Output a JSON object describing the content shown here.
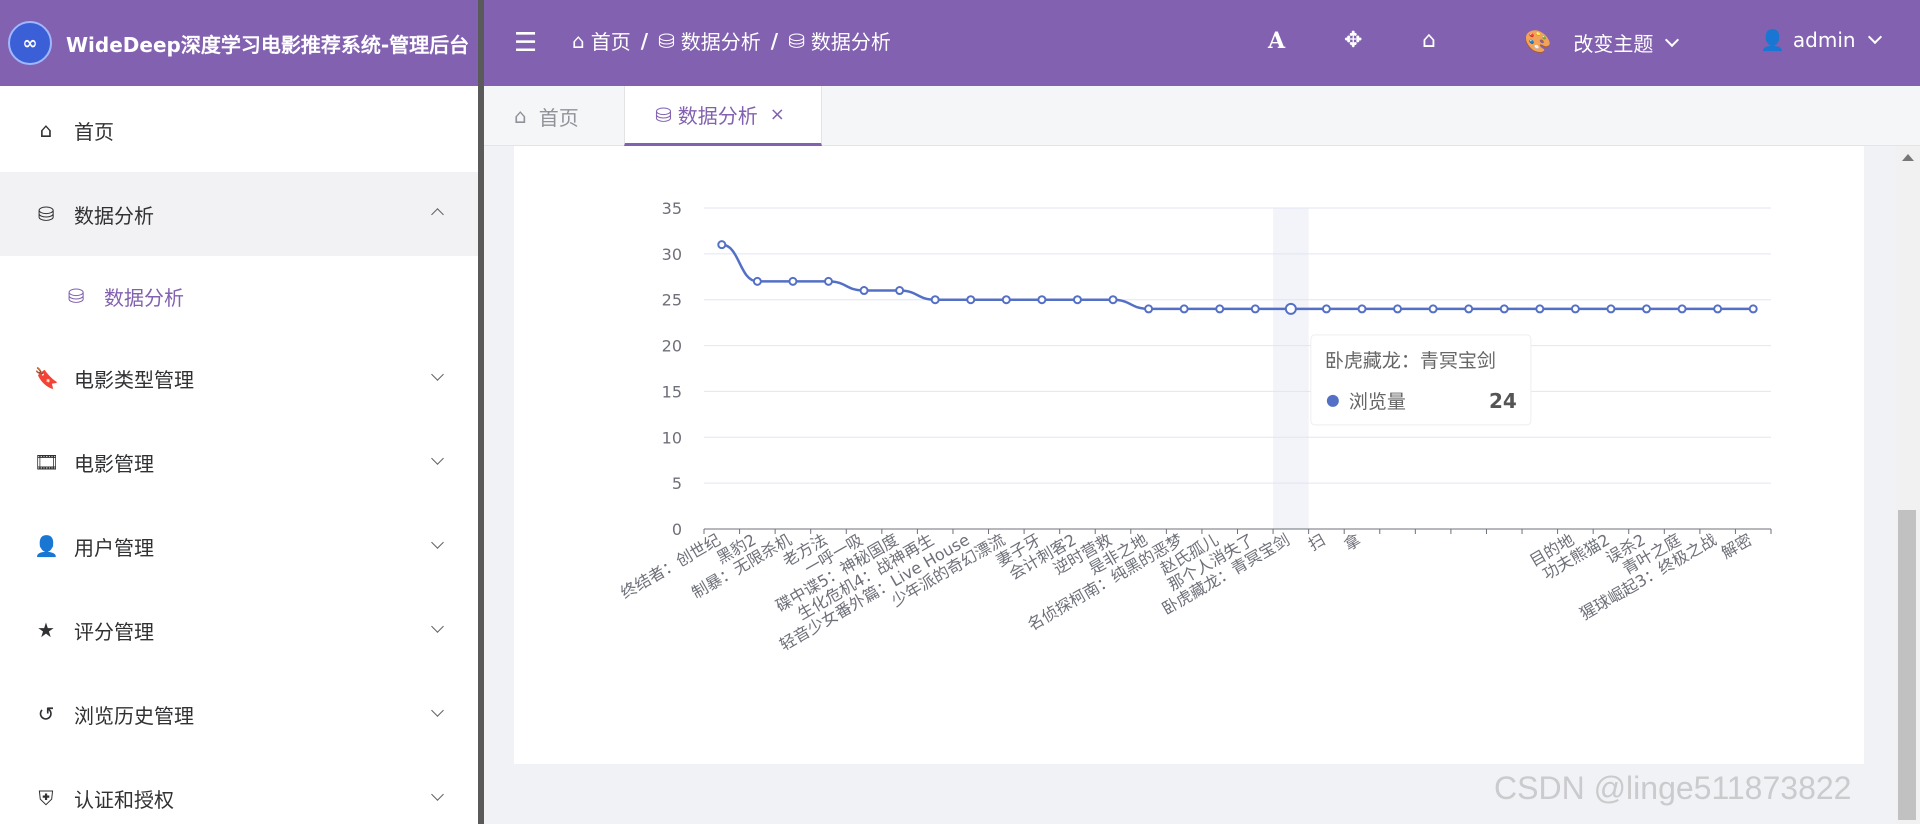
{
  "header": {
    "logo_text": "∞",
    "app_title": "WideDeep深度学习电影推荐系统-管理后台",
    "breadcrumb": [
      "首页",
      "数据分析",
      "数据分析"
    ],
    "theme_label": "改变主题",
    "user_label": "admin",
    "font_tool": "A"
  },
  "sidebar": {
    "items": [
      {
        "label": "首页",
        "icon": "home-icon"
      },
      {
        "label": "数据分析",
        "icon": "database-icon",
        "expanded": true
      },
      {
        "label": "数据分析",
        "icon": "database-icon",
        "sub": true,
        "active": true
      },
      {
        "label": "电影类型管理",
        "icon": "bookmark-icon"
      },
      {
        "label": "电影管理",
        "icon": "film-icon"
      },
      {
        "label": "用户管理",
        "icon": "user-icon"
      },
      {
        "label": "评分管理",
        "icon": "star-icon"
      },
      {
        "label": "浏览历史管理",
        "icon": "history-icon"
      },
      {
        "label": "认证和授权",
        "icon": "shield-icon"
      }
    ]
  },
  "tabs": [
    {
      "label": "首页",
      "icon": "home-icon"
    },
    {
      "label": "数据分析",
      "icon": "database-icon",
      "active": true,
      "close": "×"
    }
  ],
  "chart_data": {
    "type": "line",
    "title": "",
    "xlabel": "",
    "ylabel": "",
    "ylim": [
      0,
      35
    ],
    "yticks": [
      0,
      5,
      10,
      15,
      20,
      25,
      30,
      35
    ],
    "grid": true,
    "color": "#5470c6",
    "categories": [
      "终结者：创世纪",
      "黑豹2",
      "制暴：无限杀机",
      "老方法",
      "一呼一吸",
      "碟中谍5：神秘国度",
      "生化危机4：战神再生",
      "轻音少女番外篇：Live House",
      "少年派的奇幻漂流",
      "妻子牙",
      "会计刺客2",
      "逆时营救",
      "是非之地",
      "名侦探柯南：纯黑的恶梦",
      "赵氏孤儿",
      "那个人消失了",
      "卧虎藏龙：青冥宝剑",
      "扫",
      "拿",
      "",
      "",
      "",
      "",
      "",
      "目的地",
      "功夫熊猫2",
      "误杀2",
      "青叶之庭",
      "猩球崛起3：终极之战",
      "解密"
    ],
    "series": [
      {
        "name": "浏览量",
        "values": [
          31,
          27,
          27,
          27,
          26,
          26,
          25,
          25,
          25,
          25,
          25,
          25,
          24,
          24,
          24,
          24,
          24,
          24,
          24,
          24,
          24,
          24,
          24,
          24,
          24,
          24,
          24,
          24,
          24,
          24
        ]
      }
    ],
    "tooltip": {
      "title": "卧虎藏龙：青冥宝剑",
      "series_name": "浏览量",
      "value": "24",
      "index": 16
    }
  },
  "watermark": "CSDN @linge511873822"
}
